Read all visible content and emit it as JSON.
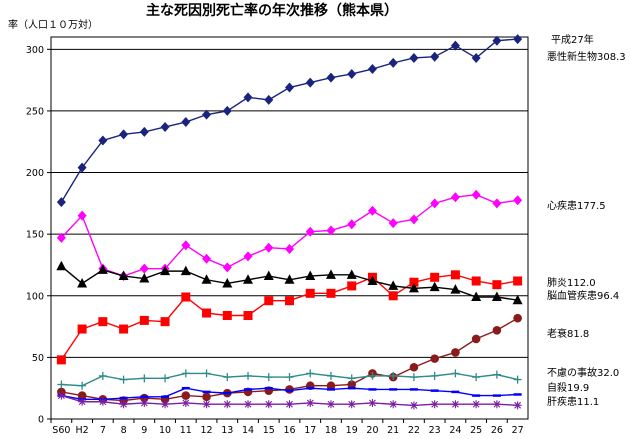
{
  "chart_data": {
    "type": "line",
    "title": "主な死因別死亡率の年次推移（熊本県）",
    "ylabel": "率（人口１０万対）",
    "year_note": "平成27年",
    "categories": [
      "S60",
      "H2",
      "7",
      "8",
      "9",
      "10",
      "11",
      "12",
      "13",
      "14",
      "15",
      "16",
      "17",
      "18",
      "19",
      "20",
      "21",
      "22",
      "23",
      "24",
      "25",
      "26",
      "27"
    ],
    "ylim": [
      0,
      310
    ],
    "yticks": [
      0,
      50,
      100,
      150,
      200,
      250,
      300
    ],
    "grid": true,
    "series": [
      {
        "name": "悪性新生物",
        "end_label": "308.3",
        "color": "#1a237e",
        "marker": "diamond",
        "values": [
          176,
          204,
          226,
          231,
          233,
          237,
          241,
          247,
          250,
          261,
          259,
          269,
          273,
          277,
          280,
          284,
          289,
          293,
          294,
          303,
          293,
          307,
          308.3
        ]
      },
      {
        "name": "心疾患",
        "end_label": "177.5",
        "color": "#ff00ff",
        "marker": "diamond",
        "values": [
          147,
          165,
          122,
          116,
          122,
          122,
          141,
          130,
          123,
          132,
          139,
          138,
          152,
          153,
          158,
          169,
          159,
          162,
          175,
          180,
          182,
          175,
          177.5
        ]
      },
      {
        "name": "肺炎",
        "end_label": "112.0",
        "color": "#ff0000",
        "marker": "square",
        "values": [
          48,
          73,
          79,
          73,
          80,
          79,
          99,
          86,
          84,
          84,
          96,
          96,
          102,
          102,
          108,
          115,
          100,
          111,
          115,
          117,
          112,
          109,
          112.0
        ]
      },
      {
        "name": "脳血管疾患",
        "end_label": "96.4",
        "color": "#000000",
        "marker": "triangle",
        "values": [
          124,
          110,
          121,
          116,
          114,
          120,
          120,
          113,
          110,
          113,
          116,
          113,
          116,
          117,
          117,
          112,
          108,
          106,
          107,
          105,
          99,
          99,
          96.4
        ]
      },
      {
        "name": "老衰",
        "end_label": "81.8",
        "color": "#8b1a1a",
        "marker": "circle",
        "values": [
          22,
          19,
          16,
          15,
          17,
          16,
          19,
          18,
          21,
          22,
          23,
          24,
          27,
          27,
          28,
          37,
          34,
          42,
          49,
          54,
          65,
          72,
          81.8
        ]
      },
      {
        "name": "不慮の事故",
        "end_label": "32.0",
        "color": "#2e8b8b",
        "marker": "plus",
        "values": [
          28,
          27,
          35,
          32,
          33,
          33,
          37,
          37,
          34,
          35,
          34,
          34,
          37,
          35,
          33,
          35,
          35,
          34,
          35,
          37,
          34,
          36,
          32.0
        ]
      },
      {
        "name": "自殺",
        "end_label": "19.9",
        "color": "#0000ff",
        "marker": "dash",
        "values": [
          19,
          16,
          16,
          17,
          18,
          18,
          25,
          22,
          21,
          24,
          25,
          23,
          25,
          24,
          25,
          24,
          24,
          24,
          23,
          22,
          19,
          19,
          19.9
        ]
      },
      {
        "name": "肝疾患",
        "end_label": "11.1",
        "color": "#7b1fa2",
        "marker": "star",
        "values": [
          19,
          14,
          14,
          12,
          13,
          12,
          13,
          12,
          12,
          12,
          12,
          12,
          13,
          12,
          12,
          13,
          12,
          11,
          12,
          12,
          12,
          12,
          11.1
        ]
      }
    ]
  }
}
